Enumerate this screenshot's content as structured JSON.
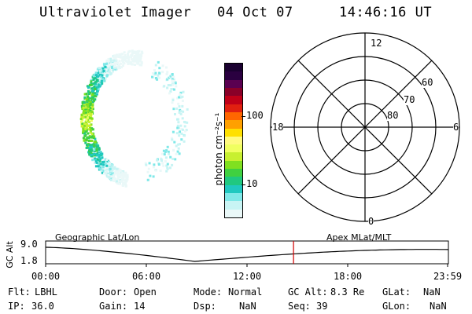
{
  "header": {
    "title": "Ultraviolet Imager",
    "date": "04 Oct 07",
    "time": "14:46:16 UT"
  },
  "colorbar": {
    "label": "photon cm⁻²s⁻¹",
    "ticks": [
      "100",
      "10"
    ],
    "colors": [
      "#1a0030",
      "#2a0040",
      "#5a0050",
      "#8a0028",
      "#c00018",
      "#e02010",
      "#ff6600",
      "#ffa000",
      "#ffe000",
      "#fffa80",
      "#f0ff60",
      "#c8f030",
      "#80e020",
      "#40d040",
      "#20c880",
      "#20c8c0",
      "#80e8e8",
      "#c8f4f4",
      "#eaf8f8"
    ]
  },
  "polar": {
    "mlt_labels": {
      "top": "12",
      "left": "18",
      "right": "6",
      "bottom": "0"
    },
    "lat_labels": [
      "60",
      "70",
      "80"
    ]
  },
  "timeline": {
    "left_title": "Geographic Lat/Lon",
    "right_title": "Apex MLat/MLT",
    "y_axis_label": "GC Alt",
    "y_ticks": [
      "9.0",
      "1.8"
    ],
    "x_ticks": [
      "00:00",
      "06:00",
      "12:00",
      "18:00",
      "23:59"
    ],
    "current_time_color": "#d00000"
  },
  "info": {
    "filter_label": "Flt:",
    "filter_value": "LBHL",
    "ip_label": "IP:",
    "ip_value": "36.0",
    "door_label": "Door:",
    "door_value": "Open",
    "gain_label": "Gain:",
    "gain_value": "14",
    "mode_label": "Mode:",
    "mode_value": "Normal",
    "dsp_label": "Dsp:",
    "dsp_value": "NaN",
    "gcalt_label": "GC Alt:",
    "gcalt_value": "8.3 Re",
    "seq_label": "Seq:",
    "seq_value": "39",
    "glat_label": "GLat:",
    "glat_value": "NaN",
    "glon_label": "GLon:",
    "glon_value": "NaN"
  }
}
